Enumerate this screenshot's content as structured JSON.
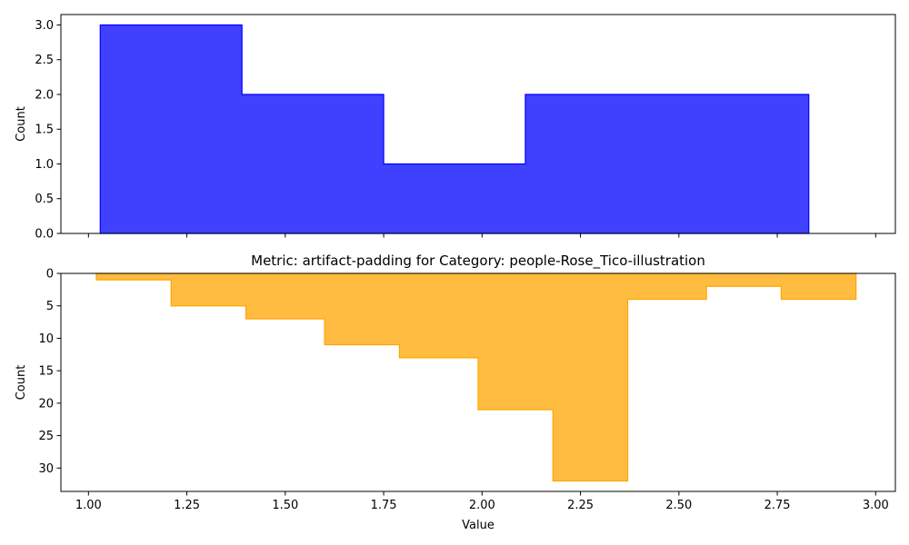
{
  "chart_data": [
    {
      "type": "histogram-step",
      "title": "",
      "xlabel": "",
      "ylabel": "Count",
      "color": "#0000ff",
      "fill_opacity": 0.75,
      "xlim": [
        0.93,
        3.05
      ],
      "ylim": [
        0,
        3.15
      ],
      "y_inverted": false,
      "xticks": [
        1.0,
        1.25,
        1.5,
        1.75,
        2.0,
        2.25,
        2.5,
        2.75,
        3.0
      ],
      "xtick_labels_shown": false,
      "yticks": [
        0.0,
        0.5,
        1.0,
        1.5,
        2.0,
        2.5,
        3.0
      ],
      "ytick_labels": [
        "0.0",
        "0.5",
        "1.0",
        "1.5",
        "2.0",
        "2.5",
        "3.0"
      ],
      "bin_edges": [
        1.03,
        1.39,
        1.75,
        2.11,
        2.47,
        2.83
      ],
      "counts": [
        3,
        2,
        1,
        2,
        2
      ]
    },
    {
      "type": "histogram-step",
      "title": "Metric: artifact-padding for Category: people-Rose_Tico-illustration",
      "xlabel": "Value",
      "ylabel": "Count",
      "color": "#ffa500",
      "fill_opacity": 0.75,
      "xlim": [
        0.93,
        3.05
      ],
      "ylim": [
        0,
        33.6
      ],
      "y_inverted": true,
      "xticks": [
        1.0,
        1.25,
        1.5,
        1.75,
        2.0,
        2.25,
        2.5,
        2.75,
        3.0
      ],
      "xtick_labels": [
        "1.00",
        "1.25",
        "1.50",
        "1.75",
        "2.00",
        "2.25",
        "2.50",
        "2.75",
        "3.00"
      ],
      "xtick_labels_shown": true,
      "yticks": [
        0,
        5,
        10,
        15,
        20,
        25,
        30
      ],
      "ytick_labels": [
        "0",
        "5",
        "10",
        "15",
        "20",
        "25",
        "30"
      ],
      "bin_edges": [
        1.02,
        1.21,
        1.4,
        1.6,
        1.79,
        1.99,
        2.18,
        2.37,
        2.57,
        2.76,
        2.95
      ],
      "counts": [
        1,
        5,
        7,
        11,
        13,
        21,
        32,
        4,
        2,
        4
      ]
    }
  ]
}
